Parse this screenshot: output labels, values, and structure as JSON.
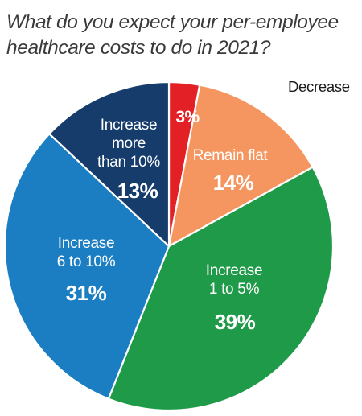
{
  "title": {
    "line1": "What do you expect your per-employee",
    "line2": "healthcare costs to do in 2021?"
  },
  "chart_data": {
    "type": "pie",
    "title": "What do you expect your per-employee healthcare costs to do in 2021?",
    "start": "12 o'clock",
    "direction": "clockwise",
    "slices": [
      {
        "label": [
          "Decrease"
        ],
        "value": 3,
        "display": "3%",
        "color": "#e32026",
        "label_color": "#1a1a1a",
        "value_color": "#ffffff"
      },
      {
        "label": [
          "Remain flat"
        ],
        "value": 14,
        "display": "14%",
        "color": "#f5955f",
        "label_color": "#ffffff",
        "value_color": "#ffffff"
      },
      {
        "label": [
          "Increase",
          "1 to 5%"
        ],
        "value": 39,
        "display": "39%",
        "color": "#1f9a48",
        "label_color": "#ffffff",
        "value_color": "#ffffff"
      },
      {
        "label": [
          "Increase",
          "6 to 10%"
        ],
        "value": 31,
        "display": "31%",
        "color": "#1b7dc2",
        "label_color": "#ffffff",
        "value_color": "#ffffff"
      },
      {
        "label": [
          "Increase",
          "more",
          "than 10%"
        ],
        "value": 13,
        "display": "13%",
        "color": "#153c6b",
        "label_color": "#ffffff",
        "value_color": "#ffffff"
      }
    ]
  }
}
